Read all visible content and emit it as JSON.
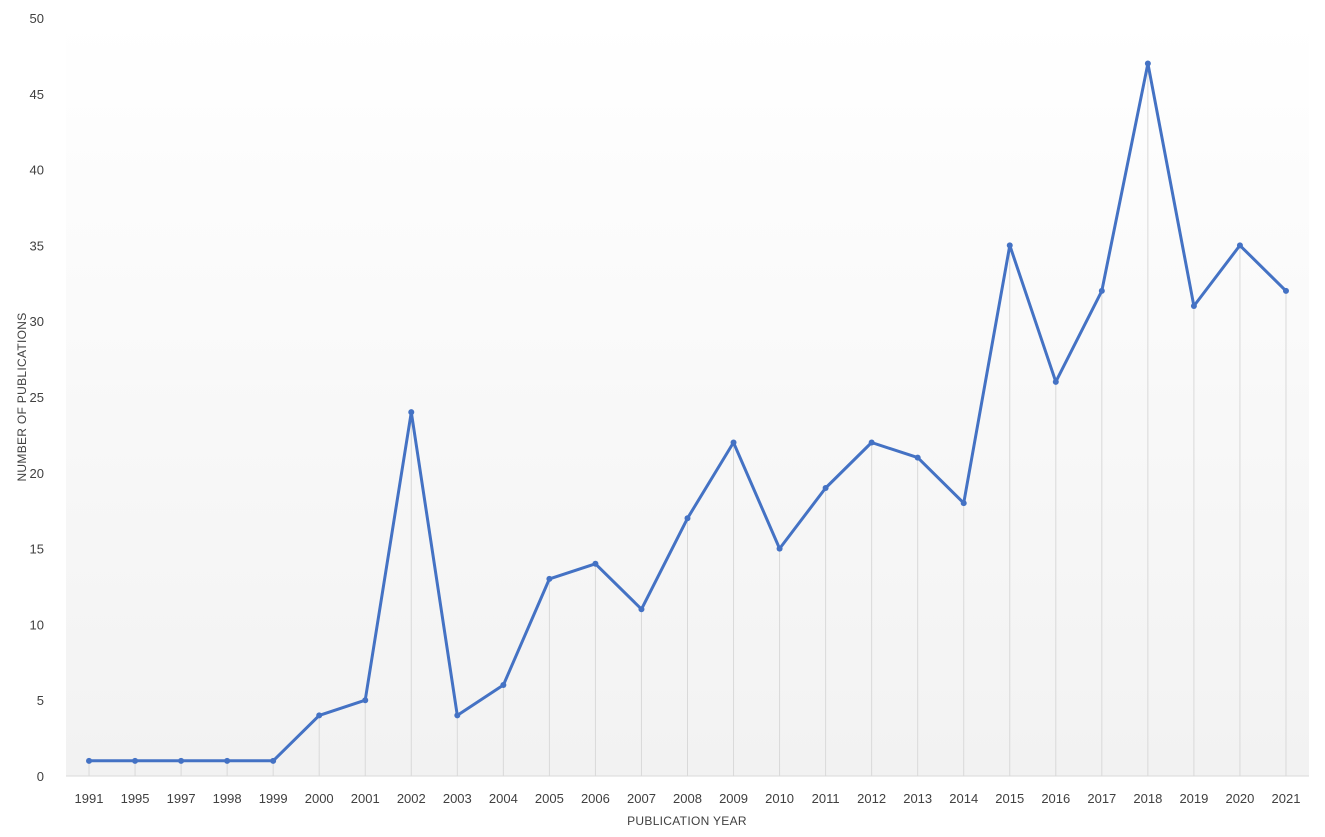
{
  "chart_data": {
    "type": "line",
    "title": "",
    "xlabel": "PUBLICATION YEAR",
    "ylabel": "NUMBER OF PUBLICATIONS",
    "categories": [
      "1991",
      "1995",
      "1997",
      "1998",
      "1999",
      "2000",
      "2001",
      "2002",
      "2003",
      "2004",
      "2005",
      "2006",
      "2007",
      "2008",
      "2009",
      "2010",
      "2011",
      "2012",
      "2013",
      "2014",
      "2015",
      "2016",
      "2017",
      "2018",
      "2019",
      "2020",
      "2021"
    ],
    "series": [
      {
        "values": [
          1,
          1,
          1,
          1,
          1,
          4,
          5,
          24,
          4,
          6,
          13,
          14,
          11,
          17,
          22,
          15,
          19,
          22,
          21,
          18,
          35,
          26,
          32,
          47,
          31,
          35,
          32
        ]
      }
    ],
    "ylim": [
      0,
      50
    ],
    "yticks": [
      0,
      5,
      10,
      15,
      20,
      25,
      30,
      35,
      40,
      45,
      50
    ],
    "grid": "vertical drop lines",
    "legend": "none",
    "colors": {
      "line": "#4472C4",
      "drop_line": "#D9D9D9",
      "axis": "#D9D9D9",
      "background_top": "#FFFFFF",
      "background_bottom": "#F2F2F2"
    }
  }
}
